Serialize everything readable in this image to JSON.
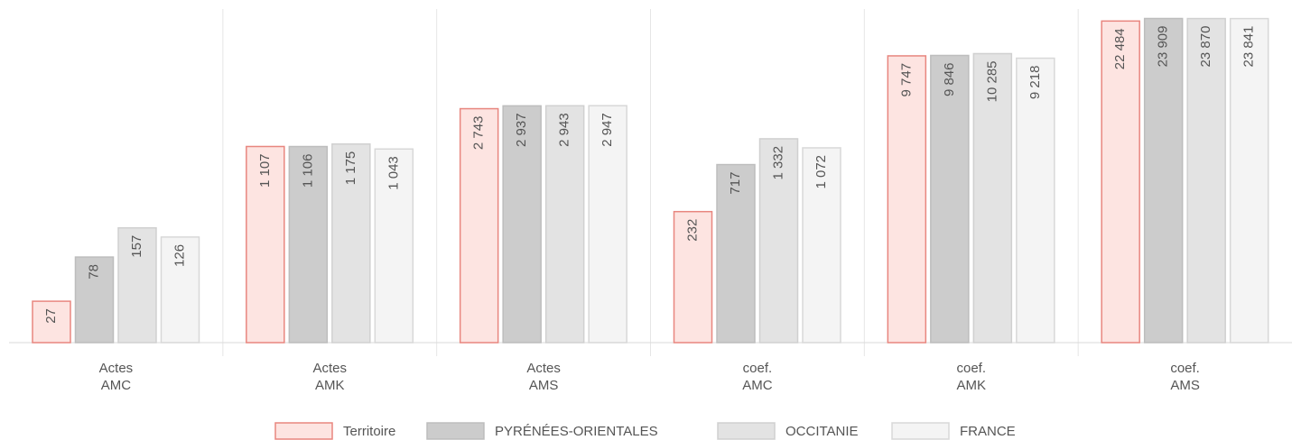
{
  "chart_data": {
    "type": "bar",
    "log_scale": true,
    "categories": [
      [
        "Actes",
        "AMC"
      ],
      [
        "Actes",
        "AMK"
      ],
      [
        "Actes",
        "AMS"
      ],
      [
        "coef.",
        "AMC"
      ],
      [
        "coef.",
        "AMK"
      ],
      [
        "coef.",
        "AMS"
      ]
    ],
    "ylim": [
      10,
      30000
    ],
    "series": [
      {
        "name": "Territoire",
        "color": "#fde4e1",
        "stroke": "#e8867f",
        "values": [
          27,
          1107,
          2743,
          232,
          9747,
          22484
        ],
        "value_labels": [
          "27",
          "1 107",
          "2 743",
          "232",
          "9 747",
          "22 484"
        ]
      },
      {
        "name": "PYRÉNÉES-ORIENTALES",
        "color": "#cccccc",
        "stroke": "#bdbdbd",
        "values": [
          78,
          1106,
          2937,
          717,
          9846,
          23909
        ],
        "value_labels": [
          "78",
          "1 106",
          "2 937",
          "717",
          "9 846",
          "23 909"
        ]
      },
      {
        "name": "OCCITANIE",
        "color": "#e3e3e3",
        "stroke": "#d0d0d0",
        "values": [
          157,
          1175,
          2943,
          1332,
          10285,
          23870
        ],
        "value_labels": [
          "157",
          "1 175",
          "2 943",
          "1 332",
          "10 285",
          "23 870"
        ]
      },
      {
        "name": "FRANCE",
        "color": "#f4f4f4",
        "stroke": "#d8d8d8",
        "values": [
          126,
          1043,
          2947,
          1072,
          9218,
          23841
        ],
        "value_labels": [
          "126",
          "1 043",
          "2 947",
          "1 072",
          "9 218",
          "23 841"
        ]
      }
    ]
  }
}
